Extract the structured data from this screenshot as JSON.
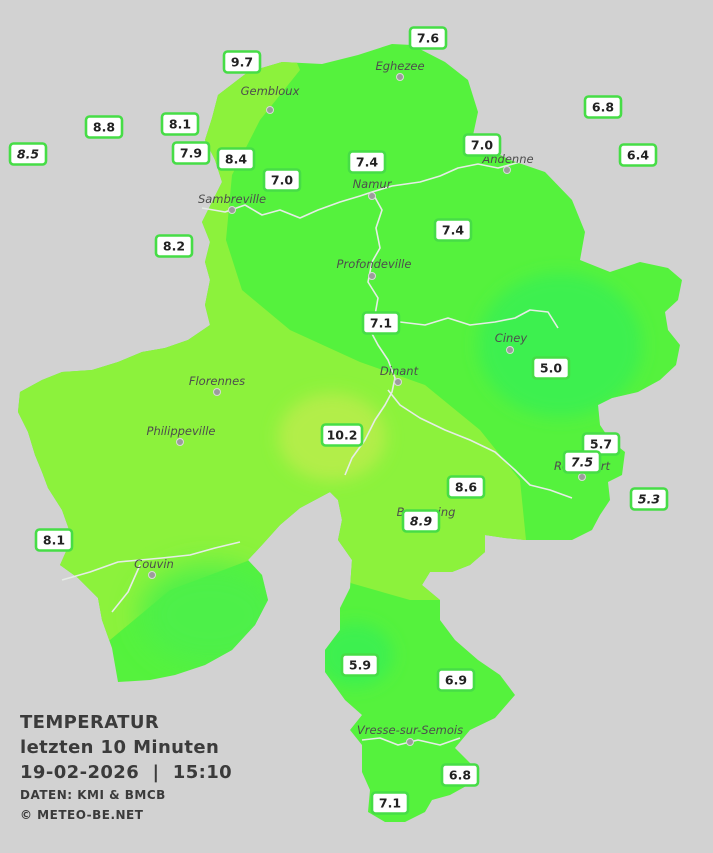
{
  "legend": {
    "title": "TEMPERATUR",
    "subtitle": "letzten 10 Minuten",
    "datetime": "19-02-2026  |  15:10",
    "source": "DATEN: KMI & BMCB",
    "copyright": "© METEO-BE.NET"
  },
  "cities": [
    {
      "id": "gembloux",
      "name": "Gembloux"
    },
    {
      "id": "eghezee",
      "name": "Eghezee"
    },
    {
      "id": "andenne",
      "name": "Andenne"
    },
    {
      "id": "namur",
      "name": "Namur"
    },
    {
      "id": "sambreville",
      "name": "Sambreville"
    },
    {
      "id": "profondeville",
      "name": "Profondeville"
    },
    {
      "id": "ciney",
      "name": "Ciney"
    },
    {
      "id": "dinant",
      "name": "Dinant"
    },
    {
      "id": "florennes",
      "name": "Florennes"
    },
    {
      "id": "philippeville",
      "name": "Philippeville"
    },
    {
      "id": "rochefort",
      "name": "Rochefort"
    },
    {
      "id": "beauraing",
      "name": "Beauraing"
    },
    {
      "id": "couvin",
      "name": "Couvin"
    },
    {
      "id": "vresse",
      "name": "Vresse-sur-Semois"
    }
  ],
  "stations": [
    {
      "value": "7.6"
    },
    {
      "value": "9.7"
    },
    {
      "value": "6.8"
    },
    {
      "value": "8.8"
    },
    {
      "value": "8.1"
    },
    {
      "value": "8.5"
    },
    {
      "value": "7.0"
    },
    {
      "value": "6.4"
    },
    {
      "value": "7.9"
    },
    {
      "value": "8.4"
    },
    {
      "value": "7.4"
    },
    {
      "value": "7.0"
    },
    {
      "value": "7.4"
    },
    {
      "value": "8.2"
    },
    {
      "value": "7.1"
    },
    {
      "value": "5.0"
    },
    {
      "value": "10.2"
    },
    {
      "value": "5.7"
    },
    {
      "value": "7.5"
    },
    {
      "value": "8.6"
    },
    {
      "value": "5.3"
    },
    {
      "value": "8.9"
    },
    {
      "value": "8.1"
    },
    {
      "value": "5.9"
    },
    {
      "value": "6.9"
    },
    {
      "value": "6.8"
    },
    {
      "value": "7.1"
    }
  ],
  "colors": {
    "background": "#d2d2d2",
    "station_border": "#46dd46",
    "temp_bright_green": "#55f23d",
    "temp_lime": "#8cf23c",
    "temp_yellow_green": "#b2ee48",
    "temp_cool_green": "#3cf050",
    "river": "#e6ece6"
  }
}
